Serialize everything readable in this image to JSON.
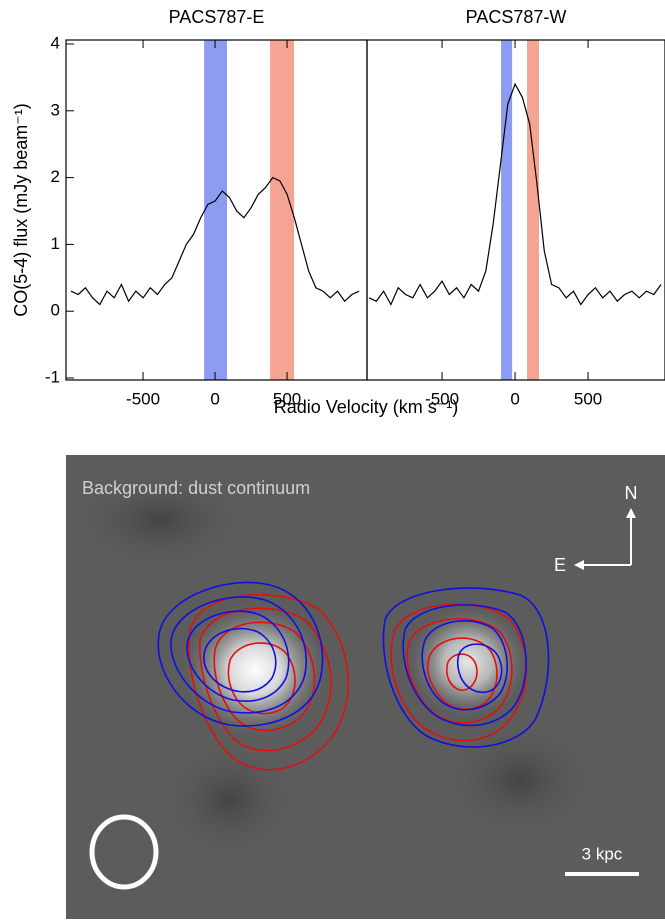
{
  "chart_data": [
    {
      "type": "line",
      "title": "PACS787-E",
      "xlabel": "Radio Velocity (km s⁻¹)",
      "ylabel": "CO(5-4) flux (mJy beam⁻¹)",
      "color": "#000000",
      "x": [
        -1000,
        -950,
        -900,
        -850,
        -800,
        -750,
        -700,
        -650,
        -600,
        -550,
        -500,
        -450,
        -400,
        -350,
        -300,
        -250,
        -200,
        -150,
        -100,
        -50,
        0,
        50,
        100,
        150,
        200,
        250,
        300,
        350,
        400,
        450,
        500,
        550,
        600,
        650,
        700,
        750,
        800,
        850,
        900,
        950,
        1000
      ],
      "values": [
        0.3,
        0.25,
        0.35,
        0.2,
        0.1,
        0.3,
        0.2,
        0.4,
        0.15,
        0.3,
        0.2,
        0.35,
        0.25,
        0.4,
        0.5,
        0.75,
        1.0,
        1.15,
        1.4,
        1.6,
        1.65,
        1.8,
        1.7,
        1.5,
        1.4,
        1.55,
        1.75,
        1.85,
        2.0,
        1.95,
        1.75,
        1.4,
        1.0,
        0.6,
        0.35,
        0.3,
        0.2,
        0.3,
        0.15,
        0.25,
        0.3
      ],
      "xlim": [
        -1035,
        1055
      ],
      "ylim": [
        -1.03,
        4.06
      ],
      "xticks": [
        -500,
        0,
        500
      ],
      "yticks": [
        -1,
        0,
        1,
        2,
        3,
        4
      ],
      "bands": [
        {
          "range": [
            -76,
            83
          ],
          "color": "#8c9cf2"
        },
        {
          "range": [
            382,
            549
          ],
          "color": "#f5a393"
        }
      ]
    },
    {
      "type": "line",
      "title": "PACS787-W",
      "color": "#000000",
      "x": [
        -1000,
        -950,
        -900,
        -850,
        -800,
        -750,
        -700,
        -650,
        -600,
        -550,
        -500,
        -450,
        -400,
        -350,
        -300,
        -250,
        -200,
        -150,
        -100,
        -50,
        0,
        50,
        100,
        150,
        200,
        250,
        300,
        350,
        400,
        450,
        500,
        550,
        600,
        650,
        700,
        750,
        800,
        850,
        900,
        950,
        1000
      ],
      "values": [
        0.2,
        0.15,
        0.3,
        0.1,
        0.35,
        0.25,
        0.2,
        0.4,
        0.2,
        0.3,
        0.45,
        0.25,
        0.35,
        0.2,
        0.4,
        0.3,
        0.6,
        1.3,
        2.2,
        3.1,
        3.4,
        3.2,
        2.8,
        1.9,
        0.9,
        0.4,
        0.35,
        0.2,
        0.3,
        0.1,
        0.25,
        0.35,
        0.2,
        0.3,
        0.15,
        0.25,
        0.3,
        0.2,
        0.3,
        0.25,
        0.4
      ],
      "xlim": [
        -1014,
        1027
      ],
      "ylim": [
        -1.03,
        4.06
      ],
      "xticks": [
        -500,
        0,
        500
      ],
      "bands": [
        {
          "range": [
            -96,
            -20
          ],
          "color": "#8c9cf2"
        },
        {
          "range": [
            82,
            164
          ],
          "color": "#f5a393"
        }
      ]
    }
  ],
  "image_panel": {
    "label": "Background: dust continuum",
    "north": "N",
    "east": "E",
    "scale_bar": "3 kpc"
  }
}
